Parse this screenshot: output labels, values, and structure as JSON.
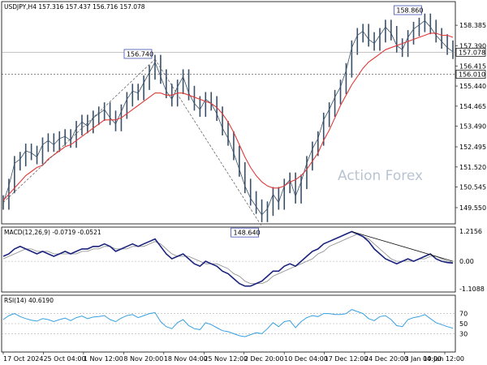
{
  "chart_data": [
    {
      "type": "candlestick",
      "title": "USDJPY,H4  157.316 157.437 156.716 157.078",
      "ylim": [
        149.0,
        158.9
      ],
      "price_ticks": [
        "158.385",
        "157.390",
        "156.415",
        "155.440",
        "154.465",
        "153.490",
        "152.495",
        "151.520",
        "150.545",
        "149.550"
      ],
      "markers": {
        "current_price": "157.078",
        "support_level": "156.010",
        "tl_high": "156.740",
        "tl_low": "148.640",
        "recent_high": "158.860"
      },
      "close": [
        149.8,
        150.6,
        151.7,
        151.9,
        152.3,
        152.2,
        152.0,
        152.6,
        152.8,
        152.6,
        152.9,
        153.0,
        152.8,
        153.4,
        153.7,
        153.5,
        153.9,
        154.1,
        154.3,
        153.9,
        153.6,
        154.2,
        154.8,
        155.2,
        155.1,
        155.6,
        156.1,
        156.6,
        155.9,
        155.2,
        154.8,
        155.4,
        155.9,
        155.1,
        154.6,
        154.3,
        154.8,
        154.6,
        154.1,
        153.4,
        152.9,
        152.2,
        151.4,
        150.6,
        150.0,
        149.6,
        149.2,
        149.5,
        150.2,
        149.8,
        150.6,
        150.9,
        150.1,
        150.8,
        151.7,
        152.4,
        152.9,
        153.8,
        154.3,
        154.9,
        155.4,
        156.2,
        157.3,
        157.9,
        158.1,
        157.7,
        157.5,
        157.9,
        158.3,
        158.0,
        157.4,
        157.2,
        157.8,
        158.2,
        158.4,
        158.6,
        158.3,
        157.9,
        157.6,
        157.3,
        157.1
      ],
      "ma": [
        149.9,
        150.2,
        150.5,
        150.8,
        151.1,
        151.3,
        151.5,
        151.6,
        151.9,
        152.1,
        152.3,
        152.5,
        152.6,
        152.8,
        153.0,
        153.2,
        153.4,
        153.6,
        153.8,
        153.8,
        153.8,
        153.9,
        154.1,
        154.3,
        154.5,
        154.7,
        154.9,
        155.1,
        155.1,
        155.0,
        155.0,
        155.1,
        155.1,
        155.0,
        154.9,
        154.8,
        154.7,
        154.6,
        154.4,
        154.1,
        153.7,
        153.2,
        152.6,
        152.0,
        151.5,
        151.1,
        150.8,
        150.6,
        150.5,
        150.5,
        150.6,
        150.8,
        150.9,
        151.1,
        151.4,
        151.8,
        152.2,
        152.8,
        153.3,
        153.9,
        154.5,
        155.0,
        155.5,
        155.9,
        156.3,
        156.6,
        156.8,
        157.0,
        157.2,
        157.3,
        157.4,
        157.5,
        157.6,
        157.7,
        157.8,
        157.9,
        158.0,
        158.0,
        157.9,
        157.9,
        157.8
      ]
    },
    {
      "type": "line",
      "title": "MACD(12,26,9) -0.0719 -0.0521",
      "ylim": [
        -1.1088,
        1.2156
      ],
      "ticks": [
        "1.2156",
        "0.00",
        "-1.1088"
      ],
      "macd": [
        0.2,
        0.3,
        0.5,
        0.6,
        0.5,
        0.4,
        0.3,
        0.4,
        0.3,
        0.2,
        0.3,
        0.4,
        0.3,
        0.4,
        0.5,
        0.5,
        0.6,
        0.6,
        0.7,
        0.6,
        0.4,
        0.5,
        0.6,
        0.7,
        0.6,
        0.7,
        0.8,
        0.9,
        0.6,
        0.3,
        0.1,
        0.2,
        0.3,
        0.1,
        -0.1,
        -0.2,
        0.0,
        -0.1,
        -0.2,
        -0.4,
        -0.5,
        -0.7,
        -0.9,
        -1.0,
        -1.0,
        -0.9,
        -0.8,
        -0.6,
        -0.4,
        -0.4,
        -0.2,
        -0.1,
        -0.2,
        0.0,
        0.2,
        0.4,
        0.5,
        0.7,
        0.8,
        0.9,
        1.0,
        1.1,
        1.2,
        1.1,
        1.0,
        0.8,
        0.5,
        0.3,
        0.1,
        0.0,
        -0.1,
        0.0,
        0.1,
        0.0,
        0.1,
        0.2,
        0.3,
        0.1,
        0.0,
        -0.05,
        -0.07
      ],
      "signal": [
        0.1,
        0.2,
        0.3,
        0.4,
        0.5,
        0.5,
        0.4,
        0.4,
        0.4,
        0.3,
        0.3,
        0.3,
        0.3,
        0.3,
        0.4,
        0.4,
        0.5,
        0.5,
        0.6,
        0.6,
        0.5,
        0.5,
        0.5,
        0.6,
        0.6,
        0.6,
        0.7,
        0.8,
        0.7,
        0.5,
        0.3,
        0.2,
        0.2,
        0.2,
        0.1,
        0.0,
        -0.1,
        -0.1,
        -0.1,
        -0.2,
        -0.3,
        -0.5,
        -0.6,
        -0.8,
        -0.9,
        -0.9,
        -0.9,
        -0.8,
        -0.6,
        -0.5,
        -0.4,
        -0.3,
        -0.2,
        -0.1,
        0.0,
        0.1,
        0.3,
        0.4,
        0.6,
        0.7,
        0.8,
        0.9,
        1.0,
        1.1,
        1.0,
        0.9,
        0.7,
        0.5,
        0.3,
        0.1,
        0.0,
        0.0,
        0.0,
        0.0,
        0.1,
        0.1,
        0.2,
        0.2,
        0.1,
        0.0,
        -0.05
      ]
    },
    {
      "type": "line",
      "title": "RSI(14) 40.6190",
      "ylim": [
        0,
        100
      ],
      "ticks": [
        "70",
        "50",
        "30"
      ],
      "values": [
        58,
        66,
        70,
        64,
        60,
        57,
        55,
        60,
        58,
        54,
        58,
        61,
        56,
        62,
        65,
        60,
        63,
        64,
        66,
        58,
        54,
        61,
        66,
        68,
        62,
        66,
        70,
        72,
        54,
        44,
        40,
        52,
        58,
        46,
        40,
        38,
        52,
        48,
        42,
        36,
        34,
        30,
        26,
        24,
        28,
        32,
        30,
        40,
        52,
        44,
        54,
        56,
        42,
        54,
        62,
        66,
        64,
        70,
        70,
        68,
        68,
        70,
        78,
        74,
        70,
        60,
        56,
        64,
        66,
        58,
        46,
        44,
        58,
        62,
        64,
        68,
        60,
        52,
        48,
        44,
        41
      ]
    }
  ],
  "x_labels": [
    "17 Oct 2024",
    "25 Oct 04:00",
    "1 Nov 12:00",
    "8 Nov 20:00",
    "18 Nov 04:00",
    "25 Nov 12:00",
    "2 Dec 20:00",
    "10 Dec 04:00",
    "17 Dec 12:00",
    "24 Dec 20:00",
    "3 Jan 04:00",
    "10 Jan 12:00"
  ],
  "watermark": "Action Forex",
  "colors": {
    "price": "#3a5068",
    "ma": "#e03a3a",
    "macd": "#1a237e",
    "signal": "#8a8a8a",
    "rsi": "#39a0e0",
    "trend": "#111111",
    "label_border": "#3f51b5"
  }
}
